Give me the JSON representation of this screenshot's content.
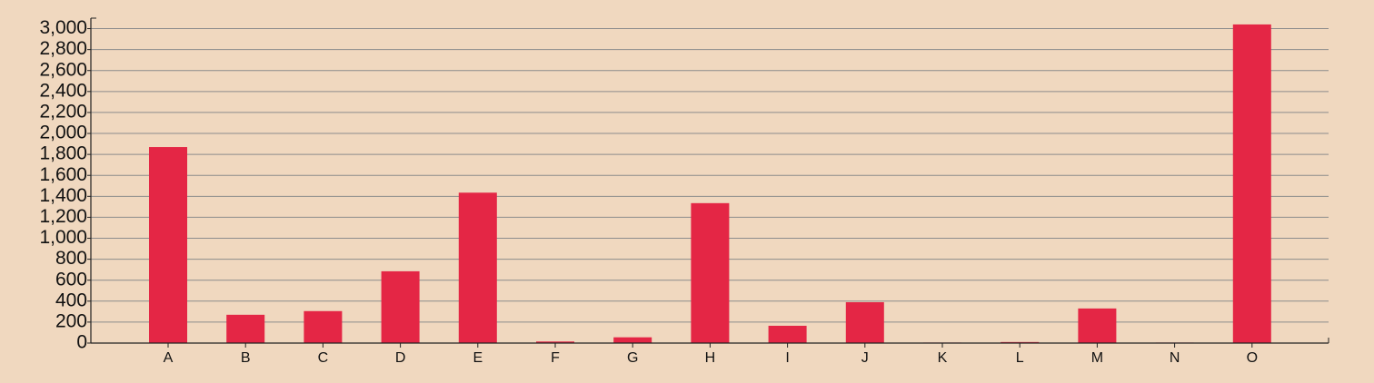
{
  "chart_data": {
    "type": "bar",
    "title": "",
    "xlabel": "",
    "ylabel": "",
    "categories": [
      "A",
      "B",
      "C",
      "D",
      "E",
      "F",
      "G",
      "H",
      "I",
      "J",
      "K",
      "L",
      "M",
      "N",
      "O"
    ],
    "values": [
      1870,
      270,
      305,
      685,
      1435,
      15,
      55,
      1335,
      165,
      390,
      5,
      10,
      330,
      5,
      3040
    ],
    "ylim": [
      0,
      3100
    ],
    "yticks": [
      0,
      200,
      400,
      600,
      800,
      1000,
      1200,
      1400,
      1600,
      1800,
      2000,
      2200,
      2400,
      2600,
      2800,
      3000
    ],
    "ytick_labels": [
      "0",
      "200",
      "400",
      "600",
      "800",
      "1,000",
      "1,200",
      "1,400",
      "1,600",
      "1,800",
      "2,000",
      "2,200",
      "2,400",
      "2,600",
      "2,800",
      "3,000"
    ],
    "grid": true,
    "legend": "none",
    "colors": {
      "background": "#F0D8BF",
      "bar": "#E42645",
      "grid": "#8C8C8C",
      "axis": "#222222",
      "text": "#111111"
    }
  }
}
